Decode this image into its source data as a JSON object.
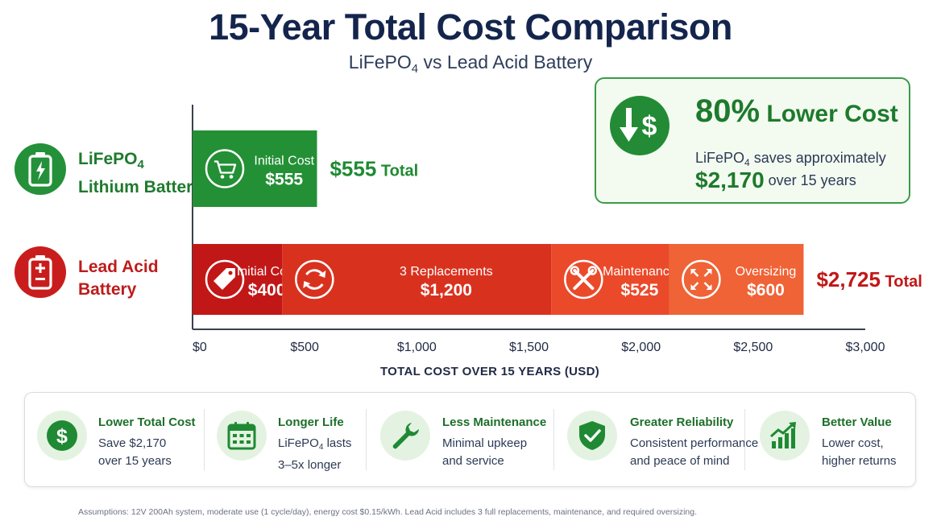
{
  "title": "15-Year Total Cost Comparison",
  "subtitle": {
    "prefix": "LiFePO",
    "sub": "4",
    "suffix": " vs Lead Acid Battery"
  },
  "batteries": {
    "lifepo4": {
      "line1_prefix": "LiFePO",
      "line1_sub": "4",
      "line2": "Lithium Battery"
    },
    "lead_acid": {
      "line1": "Lead Acid",
      "line2": "Battery"
    }
  },
  "colors": {
    "green": "#239035",
    "red_dark": "#c21717",
    "red_mid": "#d8321f",
    "orange_red": "#ea4a2a",
    "orange": "#ef6336",
    "navy": "#14254d"
  },
  "chart_data": {
    "type": "bar",
    "orientation": "horizontal",
    "stacked": true,
    "xlabel": "TOTAL COST OVER 15 YEARS (USD)",
    "xlim": [
      0,
      3000
    ],
    "ticks": [
      0,
      500,
      1000,
      1500,
      2000,
      2500,
      3000
    ],
    "tick_labels": [
      "$0",
      "$500",
      "$1,000",
      "$1,500",
      "$2,000",
      "$2,500",
      "$3,000"
    ],
    "bars": [
      {
        "name": "LiFePO4",
        "total_label": "$555",
        "total_suffix": " Total",
        "segments": [
          {
            "name": "Initial Cost",
            "value": 555,
            "value_label": "$555",
            "color": "#239035",
            "icon": "cart-icon"
          }
        ]
      },
      {
        "name": "Lead Acid",
        "total_label": "$2,725",
        "total_suffix": " Total",
        "segments": [
          {
            "name": "Initial Cost",
            "value": 400,
            "value_label": "$400",
            "color": "#c21717",
            "icon": "price-tag-icon"
          },
          {
            "name": "3 Replacements",
            "value": 1200,
            "value_label": "$1,200",
            "color": "#d8321f",
            "icon": "refresh-icon"
          },
          {
            "name": "Maintenance",
            "value": 525,
            "value_label": "$525",
            "color": "#ea4a2a",
            "icon": "tools-icon"
          },
          {
            "name": "Oversizing",
            "value": 600,
            "value_label": "$600",
            "color": "#ef6336",
            "icon": "expand-icon"
          }
        ]
      }
    ]
  },
  "callout": {
    "headline_big": "80%",
    "headline_rest": " Lower Cost",
    "line1_prefix": "LiFePO",
    "line1_sub": "4",
    "line1_suffix": " saves approximately",
    "amount": "$2,170",
    "line2_suffix": " over 15 years"
  },
  "benefits": [
    {
      "icon": "dollar-icon",
      "title": "Lower Total Cost",
      "line1": "Save $2,170",
      "line2": "over 15 years"
    },
    {
      "icon": "calendar-icon",
      "title": "Longer Life",
      "line1_prefix": "LiFePO",
      "line1_sub": "4",
      "line1_suffix": " lasts",
      "line2": "3–5x longer"
    },
    {
      "icon": "wrench-icon",
      "title": "Less Maintenance",
      "line1": "Minimal upkeep",
      "line2": "and service"
    },
    {
      "icon": "shield-check-icon",
      "title": "Greater Reliability",
      "line1": "Consistent performance",
      "line2": "and peace of mind"
    },
    {
      "icon": "growth-chart-icon",
      "title": "Better Value",
      "line1": "Lower cost,",
      "line2": "higher returns"
    }
  ],
  "footnote": "Assumptions: 12V 200Ah system, moderate use (1 cycle/day), energy cost $0.15/kWh. Lead Acid includes 3 full replacements, maintenance, and required oversizing."
}
